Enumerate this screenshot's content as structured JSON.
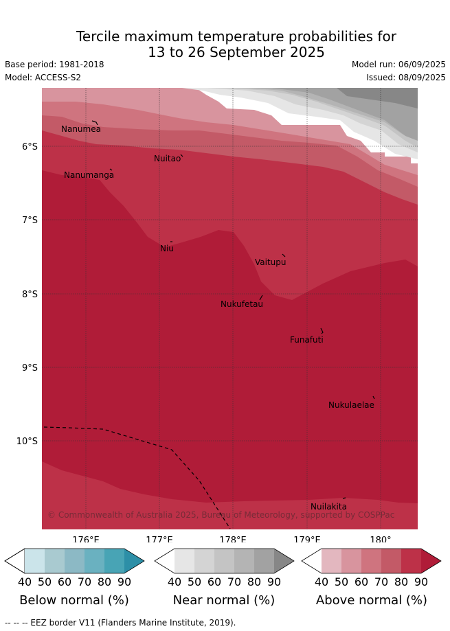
{
  "header": {
    "title_line1": "Tercile maximum temperature probabilities for",
    "title_line2": "13 to 26 September 2025",
    "base_period": "Base period: 1981-2018",
    "model": "Model: ACCESS-S2",
    "model_run": "Model run: 06/09/2025",
    "issued": "Issued: 08/09/2025"
  },
  "map": {
    "lat_labels": [
      "6°S",
      "7°S",
      "8°S",
      "9°S",
      "10°S"
    ],
    "lon_labels": [
      "176°E",
      "177°E",
      "178°E",
      "179°E",
      "180°"
    ],
    "places": [
      "Nanumea",
      "Nuitao",
      "Nanumanga",
      "Niu",
      "Vaitupu",
      "Nukufetau",
      "Funafuti",
      "Nukulaelae",
      "Nuilakita"
    ],
    "copyright": "© Commonwealth of Australia 2025, Bureau of Meteorology, supported by COSPPac",
    "colors": {
      "above": [
        "#e3b7bf",
        "#d8949e",
        "#cf747f",
        "#c35a67",
        "#bd3148",
        "#b01c38"
      ],
      "near": [
        "#e6e6e6",
        "#d4d4d4",
        "#c4c4c4",
        "#b4b4b4",
        "#a2a2a2",
        "#878787"
      ],
      "below": [
        "#cbe4ea",
        "#a9cad0",
        "#8cb9c5",
        "#6ab1c0",
        "#48a4b5",
        "#2d8fa7"
      ]
    }
  },
  "legend": {
    "ticks": [
      "40",
      "50",
      "60",
      "70",
      "80",
      "90"
    ],
    "below_label": "Below normal (%)",
    "near_label": "Near normal (%)",
    "above_label": "Above normal (%)"
  },
  "footer": {
    "eez_note": "--  --  -- EEZ border V11 (Flanders Marine Institute, 2019)."
  }
}
